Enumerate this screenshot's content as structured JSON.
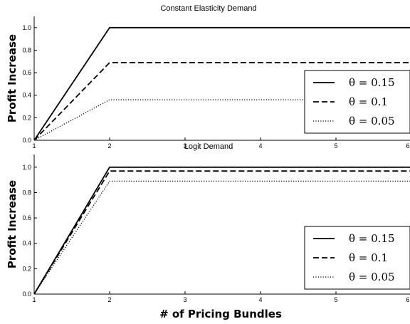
{
  "chart_data": [
    {
      "type": "line",
      "title": "Constant Elasticity Demand",
      "xlabel": "",
      "ylabel": "Profit Increase",
      "xlim": [
        1,
        6
      ],
      "ylim": [
        0,
        1.1
      ],
      "xticks": [
        1,
        2,
        3,
        4,
        5,
        6
      ],
      "yticks": [
        0,
        0.2,
        0.4,
        0.6,
        0.8,
        1.0
      ],
      "ytick_labels": [
        "0.0",
        "0.2",
        "0.4",
        "0.6",
        "0.8",
        "1.0"
      ],
      "grid": false,
      "legend_position": "right",
      "series": [
        {
          "name": "θ = 0.15",
          "style": "solid",
          "x": [
            1,
            2,
            3,
            4,
            5,
            6
          ],
          "values": [
            0,
            1.0,
            1.0,
            1.0,
            1.0,
            1.0
          ]
        },
        {
          "name": "θ = 0.1",
          "style": "dashed",
          "x": [
            1,
            2,
            3,
            4,
            5,
            6
          ],
          "values": [
            0,
            0.69,
            0.69,
            0.69,
            0.69,
            0.69
          ]
        },
        {
          "name": "θ = 0.05",
          "style": "dotted",
          "x": [
            1,
            2,
            3,
            4,
            5,
            6
          ],
          "values": [
            0,
            0.36,
            0.36,
            0.36,
            0.36,
            0.36
          ]
        }
      ]
    },
    {
      "type": "line",
      "title": "Logit Demand",
      "xlabel": "# of Pricing Bundles",
      "ylabel": "Profit Increase",
      "xlim": [
        1,
        6
      ],
      "ylim": [
        0,
        1.1
      ],
      "xticks": [
        1,
        2,
        3,
        4,
        5,
        6
      ],
      "yticks": [
        0,
        0.2,
        0.4,
        0.6,
        0.8,
        1.0
      ],
      "ytick_labels": [
        "0.0",
        "0.2",
        "0.4",
        "0.6",
        "0.8",
        "1.0"
      ],
      "grid": false,
      "legend_position": "right",
      "series": [
        {
          "name": "θ = 0.15",
          "style": "solid",
          "x": [
            1,
            2,
            3,
            4,
            5,
            6
          ],
          "values": [
            0,
            1.0,
            1.0,
            1.0,
            1.0,
            1.0
          ]
        },
        {
          "name": "θ = 0.1",
          "style": "dashed",
          "x": [
            1,
            2,
            3,
            4,
            5,
            6
          ],
          "values": [
            0,
            0.97,
            0.97,
            0.97,
            0.97,
            0.97
          ]
        },
        {
          "name": "θ = 0.05",
          "style": "dotted",
          "x": [
            1,
            2,
            3,
            4,
            5,
            6
          ],
          "values": [
            0,
            0.89,
            0.89,
            0.89,
            0.89,
            0.89
          ]
        }
      ]
    }
  ]
}
